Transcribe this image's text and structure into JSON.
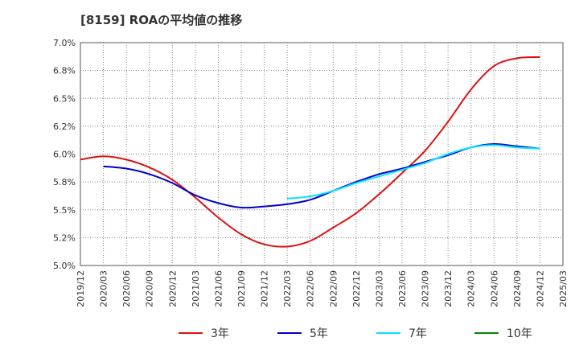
{
  "chart_data": {
    "type": "line",
    "title": "[8159]  ROAの平均値の推移",
    "xlabel": "",
    "ylabel": "",
    "ylim": [
      5.0,
      7.0
    ],
    "yticks": [
      "7.0%",
      "6.8%",
      "6.5%",
      "6.2%",
      "6.0%",
      "5.8%",
      "5.5%",
      "5.2%",
      "5.0%"
    ],
    "ytick_values": [
      7.0,
      6.75,
      6.5,
      6.25,
      6.0,
      5.75,
      5.5,
      5.25,
      5.0
    ],
    "x_categories": [
      "2019/12",
      "2020/03",
      "2020/06",
      "2020/09",
      "2020/12",
      "2021/03",
      "2021/06",
      "2021/09",
      "2021/12",
      "2022/03",
      "2022/06",
      "2022/09",
      "2022/12",
      "2023/03",
      "2023/06",
      "2023/09",
      "2023/12",
      "2024/03",
      "2024/06",
      "2024/09",
      "2024/12",
      "2025/03"
    ],
    "grid": true,
    "legend_position": "bottom",
    "series": [
      {
        "name": "3年",
        "color": "#dd1111",
        "values": [
          5.95,
          5.98,
          5.95,
          5.88,
          5.77,
          5.61,
          5.43,
          5.28,
          5.19,
          5.17,
          5.22,
          5.34,
          5.47,
          5.64,
          5.83,
          6.03,
          6.29,
          6.58,
          6.79,
          6.86,
          6.87,
          null
        ]
      },
      {
        "name": "5年",
        "color": "#0000cc",
        "values": [
          null,
          5.89,
          5.87,
          5.82,
          5.74,
          5.63,
          5.56,
          5.52,
          5.53,
          5.55,
          5.59,
          5.67,
          5.75,
          5.82,
          5.87,
          5.93,
          5.99,
          6.06,
          6.09,
          6.07,
          6.05,
          null
        ]
      },
      {
        "name": "7年",
        "color": "#00e5ff",
        "values": [
          null,
          null,
          null,
          null,
          null,
          null,
          null,
          null,
          null,
          5.6,
          5.62,
          5.67,
          5.74,
          5.8,
          5.86,
          5.92,
          6.0,
          6.06,
          6.08,
          6.06,
          6.05,
          null
        ]
      },
      {
        "name": "10年",
        "color": "#008800",
        "values": []
      }
    ]
  }
}
